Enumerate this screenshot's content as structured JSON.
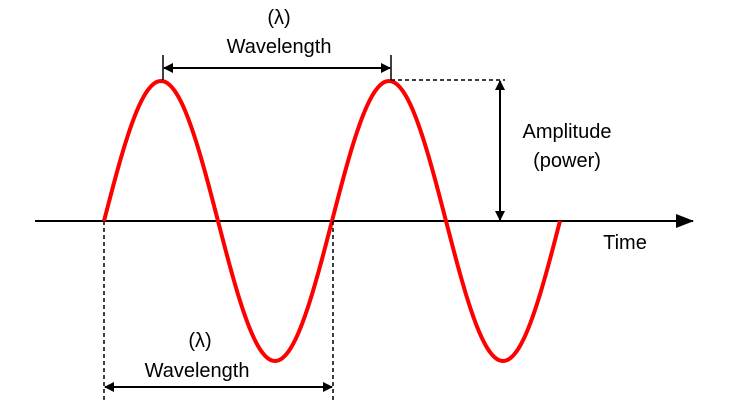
{
  "labels": {
    "top_lambda": "(λ)",
    "top_wavelength": "Wavelength",
    "bottom_lambda": "(λ)",
    "bottom_wavelength": "Wavelength",
    "amplitude": "Amplitude",
    "amplitude_sub": "(power)",
    "time_axis": "Time"
  },
  "wave": {
    "color": "#ff0000",
    "cycles": 2
  },
  "line_color": "#000000"
}
